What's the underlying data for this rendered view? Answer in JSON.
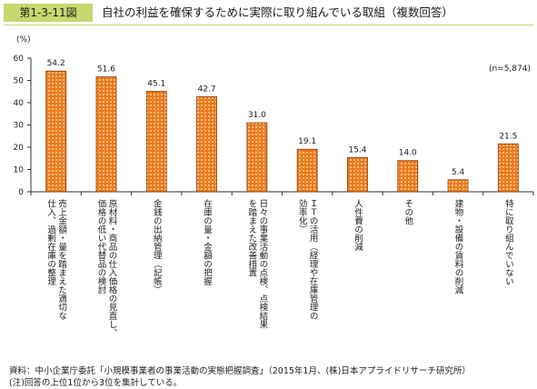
{
  "header": {
    "figure_label": "第1-3-11図",
    "title": "自社の利益を確保するために実際に取り組んでいる取組（複数回答）"
  },
  "chart_data": {
    "type": "bar",
    "title": "自社の利益を確保するために実際に取り組んでいる取組（複数回答）",
    "ylabel": "(%)",
    "xlabel": "",
    "ylim": [
      0,
      60
    ],
    "yticks": [
      0,
      10,
      20,
      30,
      40,
      50,
      60
    ],
    "grid": false,
    "legend": "none",
    "annotation": "(n=5,874)",
    "categories": [
      "売上金額・量を踏まえた適切な仕入、過剰在庫の整理",
      "原材料・商品の仕入価格の見直し、価格の低い代替品の検討",
      "金銭の出納管理（記帳）",
      "在庫の量・金額の把握",
      "日々の事業活動の点検、点検結果を踏まえた改善措置",
      "ＩＴの活用（経理や在庫管理の効率化）",
      "人件費の削減",
      "その他",
      "建物・設備の賃料の削減",
      "特に取り組んでいない"
    ],
    "category_lines": [
      [
        "売上金額・量を踏まえた適切な",
        "仕入、過剰在庫の整理"
      ],
      [
        "原材料・商品の仕入価格の見直し、",
        "価格の低い代替品の検討"
      ],
      [
        "金銭の出納管理（記帳）"
      ],
      [
        "在庫の量・金額の把握"
      ],
      [
        "日々の事業活動の点検、点検結果",
        "を踏まえた改善措置"
      ],
      [
        "ＩＴの活用（経理や在庫管理の",
        "効率化）"
      ],
      [
        "人件費の削減"
      ],
      [
        "その他"
      ],
      [
        "建物・設備の賃料の削減"
      ],
      [
        "特に取り組んでいない"
      ]
    ],
    "values": [
      54.2,
      51.6,
      45.1,
      42.7,
      31.0,
      19.1,
      15.4,
      14.0,
      5.4,
      21.5
    ],
    "value_labels": [
      "54.2",
      "51.6",
      "45.1",
      "42.7",
      "31.0",
      "19.1",
      "15.4",
      "14.0",
      "5.4",
      "21.5"
    ],
    "colors": {
      "bar_fill": "#ee7a1e",
      "bar_stroke": "#8a3a06",
      "dot": "#fff0c2",
      "axis": "#333333"
    }
  },
  "notes": {
    "source": "資料：中小企業庁委託「小規模事業者の事業活動の実態把握調査」（2015年1月、(株)日本アプライドリサーチ研究所）",
    "note": "(注)回答の上位1位から3位を集計している。"
  }
}
